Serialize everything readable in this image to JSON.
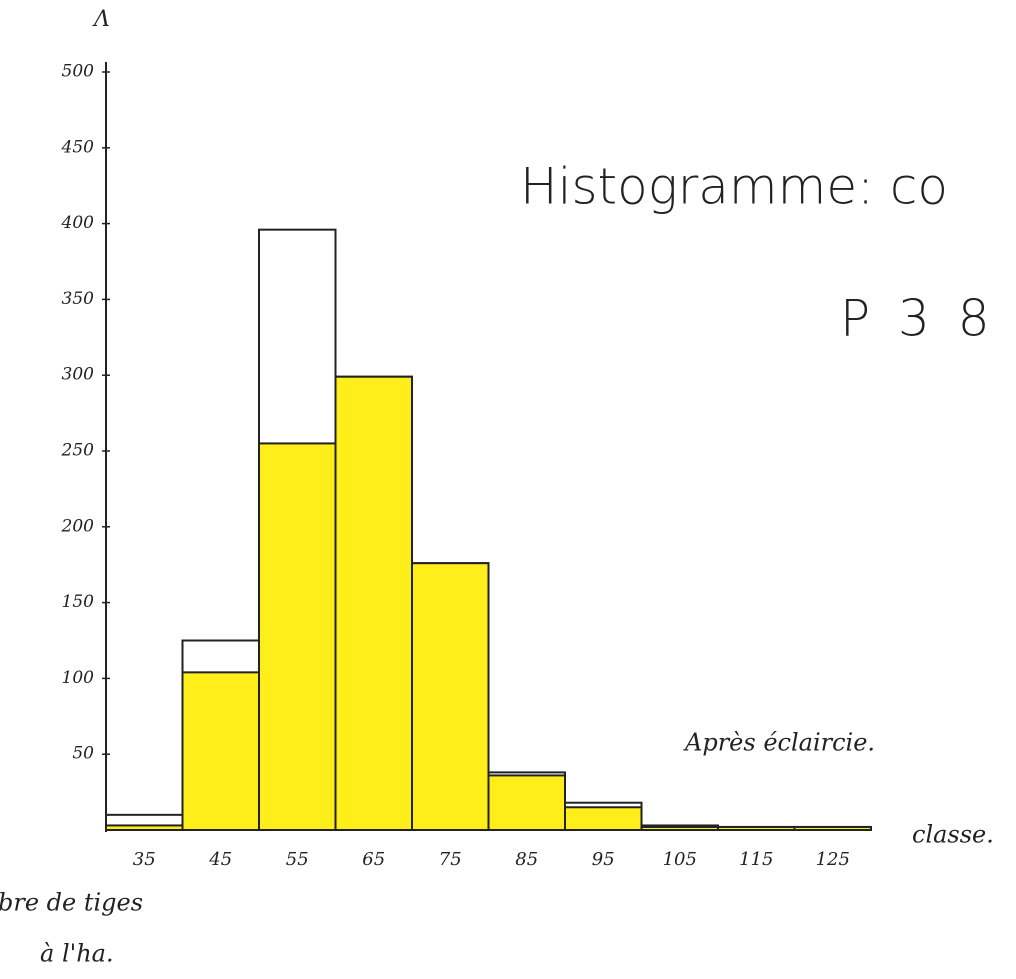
{
  "chart_data": {
    "type": "bar",
    "title": "Histogramme: co",
    "subtitle": "P 3 8",
    "annotation": "Après éclaircie.",
    "x_label": "classe.",
    "y_label": [
      "bre de tiges",
      "à l'ha."
    ],
    "categories": [
      "35",
      "45",
      "55",
      "65",
      "75",
      "85",
      "95",
      "105",
      "115",
      "125"
    ],
    "series": [
      {
        "color": "#ffffff",
        "values": [
          10,
          125,
          396,
          299,
          176,
          38,
          18,
          3,
          2,
          2
        ]
      },
      {
        "color": "#ffee1a",
        "values": [
          3,
          104,
          255,
          299,
          176,
          36,
          15,
          2,
          2,
          2
        ]
      }
    ],
    "ylim": [
      0,
      500
    ],
    "yticks": [
      50,
      100,
      150,
      200,
      250,
      300,
      350,
      400,
      450,
      500
    ]
  }
}
